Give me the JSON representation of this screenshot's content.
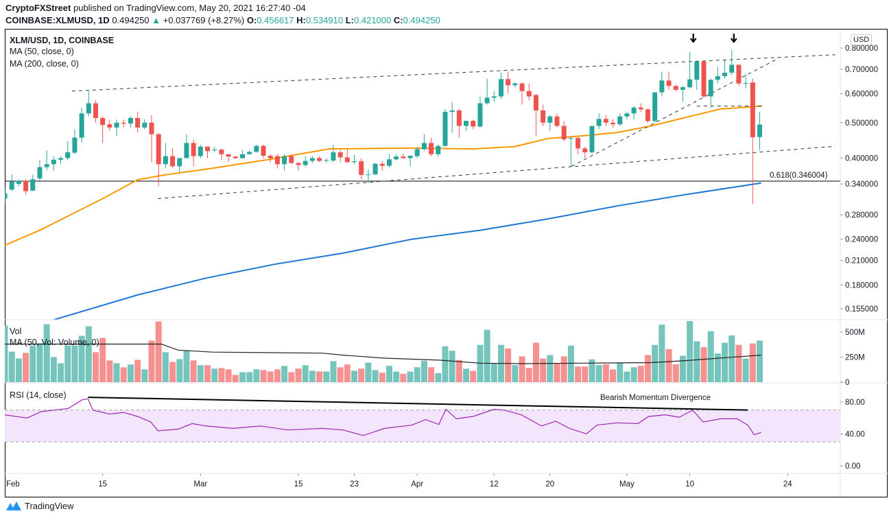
{
  "header": {
    "publisher": "CryptoFXStreet",
    "published_text": "published on TradingView.com, May 20, 2021 16:27:40 -04",
    "symbol": "COINBASE:XLMUSD, 1D",
    "last": "0.494250",
    "change": "+0.037769 (+8.27%)",
    "o_label": "O:",
    "o": "0.456617",
    "h_label": "H:",
    "h": "0.534910",
    "l_label": "L:",
    "l": "0.421000",
    "c_label": "C:",
    "c": "0.494250",
    "up_icon": "triangle-up-icon"
  },
  "legend": {
    "title": "XLM/USD, 1D, COINBASE",
    "ma50": "MA (50, close, 0)",
    "ma200": "MA (200, close, 0)",
    "vol": "Vol",
    "vol_ma": "MA (50, Vol: Volume, 0)",
    "rsi": "RSI (14, close)"
  },
  "currency_badge": "USD",
  "footer": {
    "brand": "TradingView"
  },
  "colors": {
    "up": "#26a69a",
    "down": "#ef5350",
    "vol_up": "#76c5bd",
    "vol_down": "#f59190",
    "ma50": "#ff9800",
    "ma200": "#1e77d6",
    "rsi": "#9c27b0",
    "rsi_band": "#f3e5fc"
  },
  "chart_data": [
    {
      "type": "candlestick",
      "pane": "price",
      "scale": "log",
      "start_date": "2021-02-01",
      "ohlc": [
        [
          0.31,
          0.33,
          0.3,
          0.32
        ],
        [
          0.328,
          0.36,
          0.325,
          0.345
        ],
        [
          0.34,
          0.35,
          0.335,
          0.347
        ],
        [
          0.347,
          0.35,
          0.318,
          0.325
        ],
        [
          0.326,
          0.36,
          0.325,
          0.35
        ],
        [
          0.352,
          0.395,
          0.345,
          0.378
        ],
        [
          0.378,
          0.42,
          0.37,
          0.385
        ],
        [
          0.385,
          0.405,
          0.37,
          0.396
        ],
        [
          0.396,
          0.405,
          0.385,
          0.4
        ],
        [
          0.4,
          0.445,
          0.395,
          0.415
        ],
        [
          0.414,
          0.48,
          0.41,
          0.455
        ],
        [
          0.455,
          0.55,
          0.44,
          0.53
        ],
        [
          0.53,
          0.61,
          0.52,
          0.565
        ],
        [
          0.565,
          0.575,
          0.5,
          0.515
        ],
        [
          0.515,
          0.52,
          0.44,
          0.493
        ],
        [
          0.495,
          0.51,
          0.475,
          0.485
        ],
        [
          0.485,
          0.51,
          0.46,
          0.5
        ],
        [
          0.5,
          0.51,
          0.485,
          0.497
        ],
        [
          0.497,
          0.52,
          0.485,
          0.515
        ],
        [
          0.515,
          0.535,
          0.47,
          0.485
        ],
        [
          0.485,
          0.51,
          0.48,
          0.5
        ],
        [
          0.5,
          0.525,
          0.39,
          0.465
        ],
        [
          0.465,
          0.468,
          0.335,
          0.385
        ],
        [
          0.385,
          0.44,
          0.375,
          0.405
        ],
        [
          0.405,
          0.425,
          0.375,
          0.38
        ],
        [
          0.38,
          0.4,
          0.365,
          0.4
        ],
        [
          0.4,
          0.465,
          0.4,
          0.44
        ],
        [
          0.44,
          0.45,
          0.38,
          0.405
        ],
        [
          0.405,
          0.435,
          0.4,
          0.43
        ],
        [
          0.43,
          0.43,
          0.4,
          0.418
        ],
        [
          0.42,
          0.43,
          0.415,
          0.422
        ],
        [
          0.422,
          0.425,
          0.395,
          0.41
        ],
        [
          0.41,
          0.41,
          0.39,
          0.404
        ],
        [
          0.404,
          0.405,
          0.398,
          0.4
        ],
        [
          0.4,
          0.42,
          0.398,
          0.41
        ],
        [
          0.41,
          0.42,
          0.41,
          0.416
        ],
        [
          0.416,
          0.435,
          0.414,
          0.432
        ],
        [
          0.432,
          0.435,
          0.4,
          0.406
        ],
        [
          0.406,
          0.41,
          0.39,
          0.4
        ],
        [
          0.405,
          0.41,
          0.375,
          0.385
        ],
        [
          0.385,
          0.41,
          0.37,
          0.405
        ],
        [
          0.405,
          0.41,
          0.385,
          0.388
        ],
        [
          0.388,
          0.39,
          0.37,
          0.383
        ],
        [
          0.383,
          0.405,
          0.378,
          0.393
        ],
        [
          0.393,
          0.405,
          0.388,
          0.4
        ],
        [
          0.4,
          0.405,
          0.39,
          0.393
        ],
        [
          0.394,
          0.4,
          0.388,
          0.395
        ],
        [
          0.394,
          0.435,
          0.39,
          0.415
        ],
        [
          0.415,
          0.42,
          0.39,
          0.402
        ],
        [
          0.402,
          0.425,
          0.388,
          0.39
        ],
        [
          0.39,
          0.408,
          0.385,
          0.392
        ],
        [
          0.392,
          0.4,
          0.35,
          0.36
        ],
        [
          0.36,
          0.372,
          0.342,
          0.361
        ],
        [
          0.361,
          0.388,
          0.36,
          0.386
        ],
        [
          0.386,
          0.392,
          0.37,
          0.381
        ],
        [
          0.381,
          0.41,
          0.378,
          0.397
        ],
        [
          0.397,
          0.41,
          0.394,
          0.404
        ],
        [
          0.404,
          0.412,
          0.398,
          0.4
        ],
        [
          0.4,
          0.406,
          0.38,
          0.406
        ],
        [
          0.405,
          0.43,
          0.4,
          0.423
        ],
        [
          0.423,
          0.465,
          0.42,
          0.44
        ],
        [
          0.44,
          0.455,
          0.405,
          0.41
        ],
        [
          0.41,
          0.436,
          0.404,
          0.432
        ],
        [
          0.432,
          0.545,
          0.43,
          0.535
        ],
        [
          0.535,
          0.57,
          0.47,
          0.54
        ],
        [
          0.54,
          0.545,
          0.455,
          0.49
        ],
        [
          0.49,
          0.506,
          0.475,
          0.506
        ],
        [
          0.506,
          0.51,
          0.48,
          0.488
        ],
        [
          0.488,
          0.59,
          0.485,
          0.565
        ],
        [
          0.565,
          0.66,
          0.56,
          0.585
        ],
        [
          0.585,
          0.61,
          0.57,
          0.59
        ],
        [
          0.59,
          0.685,
          0.58,
          0.658
        ],
        [
          0.658,
          0.69,
          0.6,
          0.633
        ],
        [
          0.633,
          0.645,
          0.625,
          0.64
        ],
        [
          0.64,
          0.645,
          0.56,
          0.61
        ],
        [
          0.61,
          0.64,
          0.575,
          0.59
        ],
        [
          0.595,
          0.6,
          0.46,
          0.54
        ],
        [
          0.54,
          0.56,
          0.49,
          0.5
        ],
        [
          0.5,
          0.525,
          0.475,
          0.52
        ],
        [
          0.52,
          0.53,
          0.485,
          0.49
        ],
        [
          0.49,
          0.505,
          0.445,
          0.45
        ],
        [
          0.452,
          0.456,
          0.38,
          0.454
        ],
        [
          0.454,
          0.458,
          0.41,
          0.425
        ],
        [
          0.425,
          0.43,
          0.4,
          0.415
        ],
        [
          0.415,
          0.49,
          0.41,
          0.49
        ],
        [
          0.49,
          0.53,
          0.48,
          0.512
        ],
        [
          0.512,
          0.525,
          0.49,
          0.5
        ],
        [
          0.5,
          0.51,
          0.485,
          0.495
        ],
        [
          0.495,
          0.53,
          0.49,
          0.52
        ],
        [
          0.52,
          0.535,
          0.51,
          0.53
        ],
        [
          0.53,
          0.555,
          0.51,
          0.55
        ],
        [
          0.55,
          0.565,
          0.535,
          0.544
        ],
        [
          0.544,
          0.546,
          0.5,
          0.505
        ],
        [
          0.505,
          0.605,
          0.5,
          0.605
        ],
        [
          0.605,
          0.69,
          0.59,
          0.652
        ],
        [
          0.652,
          0.69,
          0.615,
          0.63
        ],
        [
          0.63,
          0.635,
          0.61,
          0.615
        ],
        [
          0.615,
          0.63,
          0.57,
          0.625
        ],
        [
          0.625,
          0.78,
          0.62,
          0.657
        ],
        [
          0.655,
          0.74,
          0.615,
          0.735
        ],
        [
          0.735,
          0.74,
          0.585,
          0.59
        ],
        [
          0.59,
          0.66,
          0.55,
          0.655
        ],
        [
          0.655,
          0.71,
          0.64,
          0.67
        ],
        [
          0.67,
          0.74,
          0.66,
          0.685
        ],
        [
          0.685,
          0.79,
          0.675,
          0.72
        ],
        [
          0.72,
          0.72,
          0.63,
          0.64
        ],
        [
          0.64,
          0.68,
          0.62,
          0.642
        ],
        [
          0.644,
          0.66,
          0.3,
          0.456
        ],
        [
          0.456617,
          0.53491,
          0.421,
          0.49425
        ]
      ],
      "ma50": [
        [
          0,
          0.231
        ],
        [
          5.2,
          0.255
        ],
        [
          14,
          0.31
        ],
        [
          19,
          0.349
        ],
        [
          22.9,
          0.36
        ],
        [
          28.8,
          0.373
        ],
        [
          37.6,
          0.396
        ],
        [
          46.4,
          0.424
        ],
        [
          58.2,
          0.426
        ],
        [
          67,
          0.424
        ],
        [
          72.9,
          0.43
        ],
        [
          77.8,
          0.453
        ],
        [
          83.7,
          0.462
        ],
        [
          87.6,
          0.47
        ],
        [
          92.5,
          0.49
        ],
        [
          97.4,
          0.517
        ],
        [
          102.4,
          0.545
        ],
        [
          108.2,
          0.555
        ]
      ],
      "ma200": [
        [
          6.7,
          0.144
        ],
        [
          19,
          0.169
        ],
        [
          28.8,
          0.188
        ],
        [
          38.6,
          0.205
        ],
        [
          48.4,
          0.22
        ],
        [
          58.2,
          0.24
        ],
        [
          68,
          0.254
        ],
        [
          77.8,
          0.273
        ],
        [
          87.6,
          0.296
        ],
        [
          97.4,
          0.318
        ],
        [
          108.2,
          0.342
        ]
      ],
      "y_ticks": [
        "0.800000",
        "0.700000",
        "0.600000",
        "0.500000",
        "0.400000",
        "0.340000",
        "0.280000",
        "0.240000",
        "0.210000",
        "0.180000",
        "0.155000"
      ],
      "ylim": [
        0.14,
        0.84
      ],
      "fib_level": {
        "value": 0.346004,
        "label": "0.618(0.346004)"
      },
      "trendlines": [
        {
          "from": [
            9.6,
            0.61
          ],
          "to": [
            118.8,
            0.767
          ]
        },
        {
          "from": [
            21.9,
            0.31
          ],
          "to": [
            118.8,
            0.431
          ]
        },
        {
          "from": [
            81.1,
            0.38
          ],
          "to": [
            110.7,
            0.75
          ]
        },
        {
          "from": [
            99,
            0.555
          ],
          "to": [
            108.5,
            0.555
          ]
        }
      ],
      "arrows": [
        [
          98.5,
          0.82
        ],
        [
          104.3,
          0.82
        ]
      ]
    },
    {
      "type": "bar",
      "pane": "volume",
      "unit": "M",
      "values": [
        565,
        305,
        237,
        292,
        365,
        388,
        579,
        251,
        189,
        365,
        365,
        463,
        559,
        299,
        442,
        217,
        189,
        148,
        176,
        223,
        128,
        415,
        606,
        299,
        203,
        230,
        319,
        217,
        169,
        169,
        135,
        141,
        128,
        73,
        100,
        100,
        128,
        121,
        107,
        128,
        162,
        100,
        135,
        169,
        114,
        107,
        107,
        210,
        148,
        176,
        114,
        135,
        196,
        121,
        95,
        163,
        106,
        84,
        106,
        149,
        214,
        149,
        91,
        358,
        314,
        221,
        134,
        113,
        372,
        523,
        185,
        372,
        336,
        170,
        257,
        142,
        394,
        235,
        271,
        185,
        257,
        365,
        156,
        156,
        228,
        170,
        178,
        127,
        192,
        106,
        149,
        163,
        271,
        372,
        574,
        329,
        178,
        264,
        624,
        408,
        350,
        509,
        286,
        394,
        466,
        372,
        235,
        386,
        415
      ],
      "ma50": [
        [
          0,
          380
        ],
        [
          22.4,
          380
        ],
        [
          24.8,
          320
        ],
        [
          29.7,
          300
        ],
        [
          45.4,
          290
        ],
        [
          48.4,
          270
        ],
        [
          54.3,
          240
        ],
        [
          62.1,
          220
        ],
        [
          68,
          190
        ],
        [
          73.9,
          185
        ],
        [
          82.7,
          190
        ],
        [
          92.5,
          195
        ],
        [
          97.4,
          215
        ],
        [
          103.3,
          245
        ],
        [
          108.2,
          270
        ]
      ],
      "y_ticks": [
        "500M",
        "250M",
        "0"
      ]
    },
    {
      "type": "line",
      "pane": "rsi",
      "points": [
        [
          0,
          64
        ],
        [
          3.2,
          60
        ],
        [
          5.2,
          68
        ],
        [
          9.1,
          72
        ],
        [
          11.1,
          83
        ],
        [
          11.9,
          84
        ],
        [
          12.6,
          70
        ],
        [
          15,
          65
        ],
        [
          17,
          67
        ],
        [
          19,
          62
        ],
        [
          20.9,
          55
        ],
        [
          21.9,
          44
        ],
        [
          24.8,
          46
        ],
        [
          26.8,
          53
        ],
        [
          28.8,
          50
        ],
        [
          32.7,
          47
        ],
        [
          36.6,
          50
        ],
        [
          40.5,
          45
        ],
        [
          45.4,
          47
        ],
        [
          48.4,
          45
        ],
        [
          51.3,
          38
        ],
        [
          54.3,
          47
        ],
        [
          58.2,
          51
        ],
        [
          60.2,
          58
        ],
        [
          62.1,
          52
        ],
        [
          63.1,
          71
        ],
        [
          64.6,
          59
        ],
        [
          67,
          62
        ],
        [
          70,
          71
        ],
        [
          71.4,
          70
        ],
        [
          73.9,
          64
        ],
        [
          76.8,
          50
        ],
        [
          78.8,
          56
        ],
        [
          80.8,
          47
        ],
        [
          83.2,
          40
        ],
        [
          84.7,
          51
        ],
        [
          87.6,
          54
        ],
        [
          90.6,
          53
        ],
        [
          92.1,
          62
        ],
        [
          94.5,
          64
        ],
        [
          96.5,
          61
        ],
        [
          98.4,
          70
        ],
        [
          99.9,
          55
        ],
        [
          102.4,
          59
        ],
        [
          104.8,
          59
        ],
        [
          106.3,
          51
        ],
        [
          107.2,
          39
        ],
        [
          108.2,
          42
        ]
      ],
      "bands": [
        30,
        70
      ],
      "y_ticks": [
        "80.00",
        "40.00",
        "0.00"
      ],
      "divergence": {
        "from": [
          11.9,
          86
        ],
        "to": [
          106.3,
          70
        ],
        "label": "Bearish Momentum Divergence"
      }
    }
  ],
  "x_ticks": [
    {
      "label": "Feb",
      "day": 0
    },
    {
      "label": "15",
      "day": 14
    },
    {
      "label": "Mar",
      "day": 28
    },
    {
      "label": "15",
      "day": 42
    },
    {
      "label": "23",
      "day": 50
    },
    {
      "label": "Apr",
      "day": 59
    },
    {
      "label": "12",
      "day": 70
    },
    {
      "label": "20",
      "day": 78
    },
    {
      "label": "May",
      "day": 89
    },
    {
      "label": "10",
      "day": 98
    },
    {
      "label": "24",
      "day": 112
    }
  ]
}
